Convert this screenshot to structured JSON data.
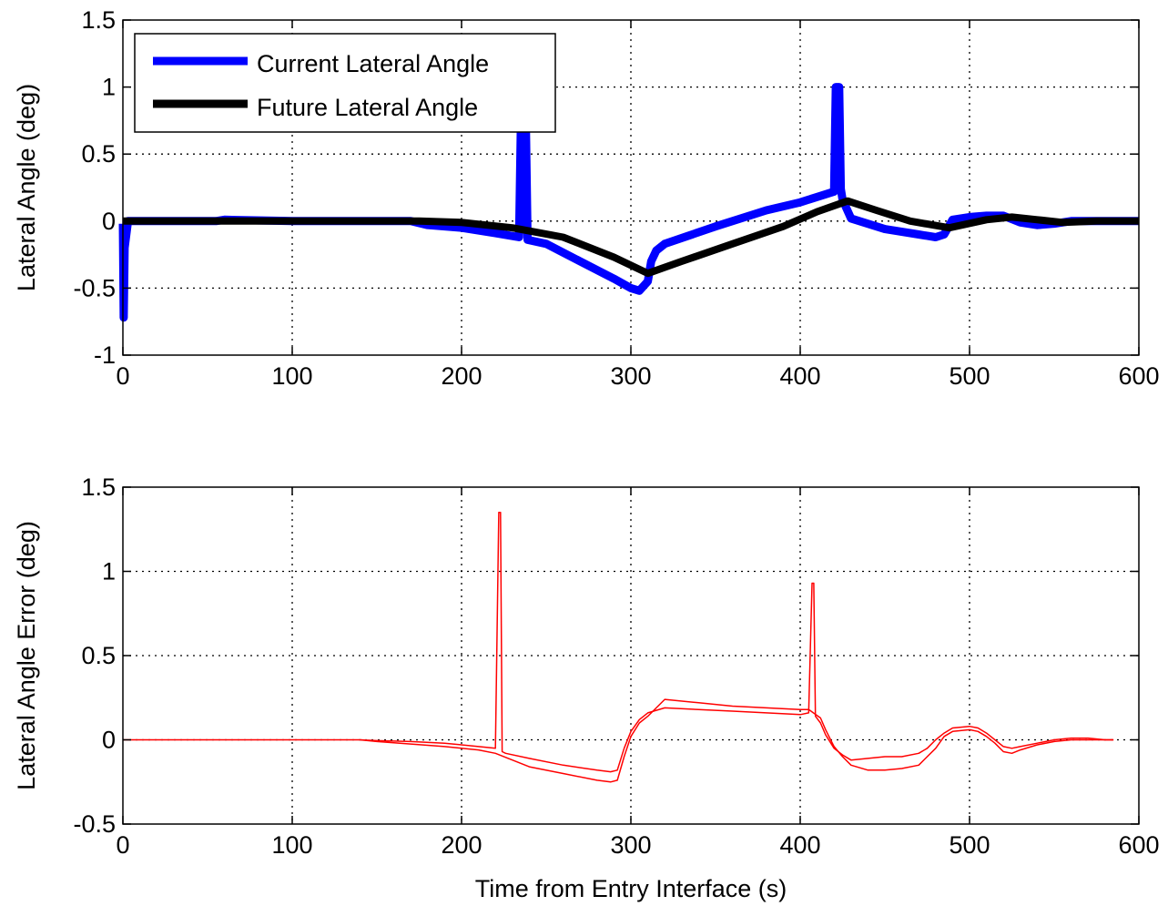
{
  "chart_data": [
    {
      "type": "line",
      "xlabel": "",
      "ylabel": "Lateral Angle (deg)",
      "xlim": [
        0,
        600
      ],
      "ylim": [
        -1,
        1.5
      ],
      "xticks": [
        0,
        100,
        200,
        300,
        400,
        500,
        600
      ],
      "xtick_labels": [
        "0",
        "100",
        "200",
        "300",
        "400",
        "500",
        "600"
      ],
      "yticks": [
        -1,
        -0.5,
        0,
        0.5,
        1,
        1.5
      ],
      "ytick_labels": [
        "-1",
        "-0.5",
        "0",
        "0.5",
        "1",
        "1.5"
      ],
      "grid": true,
      "legend_position": "top-left",
      "series": [
        {
          "name": "Current Lateral Angle",
          "color": "#0000ff",
          "x": [
            0,
            0.5,
            1,
            3,
            55,
            60,
            100,
            170,
            180,
            200,
            220,
            234,
            235,
            236,
            237,
            238,
            239,
            250,
            270,
            290,
            300,
            305,
            310,
            312,
            315,
            320,
            350,
            380,
            400,
            410,
            420,
            421,
            422,
            423,
            424,
            425,
            430,
            450,
            470,
            480,
            485,
            490,
            500,
            510,
            520,
            530,
            540,
            550,
            560,
            580,
            600
          ],
          "y": [
            -0.02,
            -0.72,
            -0.2,
            0.0,
            0.0,
            0.01,
            0.0,
            0.0,
            -0.03,
            -0.05,
            -0.09,
            -0.12,
            0.7,
            0.7,
            0.7,
            0.7,
            -0.14,
            -0.17,
            -0.3,
            -0.43,
            -0.5,
            -0.52,
            -0.45,
            -0.3,
            -0.22,
            -0.17,
            -0.04,
            0.08,
            0.14,
            0.18,
            0.22,
            1.0,
            1.0,
            1.0,
            0.24,
            0.16,
            0.02,
            -0.06,
            -0.1,
            -0.12,
            -0.1,
            0.01,
            0.03,
            0.04,
            0.04,
            -0.01,
            -0.03,
            -0.02,
            0.0,
            0.0,
            0.0
          ]
        },
        {
          "name": "Future Lateral Angle",
          "color": "#000000",
          "x": [
            0,
            100,
            175,
            200,
            230,
            260,
            290,
            310,
            330,
            360,
            390,
            410,
            428,
            445,
            465,
            488,
            510,
            525,
            540,
            555,
            575,
            600
          ],
          "y": [
            0.0,
            0.0,
            0.0,
            -0.01,
            -0.05,
            -0.12,
            -0.27,
            -0.39,
            -0.3,
            -0.17,
            -0.04,
            0.07,
            0.15,
            0.08,
            0.0,
            -0.05,
            0.01,
            0.03,
            0.01,
            -0.01,
            0.0,
            0.0
          ]
        }
      ]
    },
    {
      "type": "line",
      "xlabel": "Time from Entry Interface (s)",
      "ylabel": "Lateral Angle Error (deg)",
      "xlim": [
        0,
        600
      ],
      "ylim": [
        -0.5,
        1.5
      ],
      "xticks": [
        0,
        100,
        200,
        300,
        400,
        500,
        600
      ],
      "xtick_labels": [
        "0",
        "100",
        "200",
        "300",
        "400",
        "500",
        "600"
      ],
      "yticks": [
        -0.5,
        0,
        0.5,
        1,
        1.5
      ],
      "ytick_labels": [
        "-0.5",
        "0",
        "0.5",
        "1",
        "1.5"
      ],
      "grid": true,
      "series": [
        {
          "color": "#ff0000",
          "x": [
            0,
            140,
            150,
            170,
            190,
            200,
            210,
            220,
            222,
            223,
            224,
            226,
            240,
            260,
            280,
            288,
            292,
            296,
            300,
            305,
            310,
            320,
            340,
            360,
            380,
            400,
            405,
            407,
            408,
            409,
            412,
            415,
            420,
            425,
            430,
            440,
            450,
            460,
            470,
            475,
            480,
            485,
            490,
            500,
            505,
            510,
            515,
            520,
            525,
            530,
            540,
            550,
            560,
            570,
            580,
            585
          ],
          "y": [
            0,
            0,
            -0.005,
            -0.01,
            -0.02,
            -0.03,
            -0.04,
            -0.05,
            1.35,
            1.35,
            -0.07,
            -0.08,
            -0.11,
            -0.15,
            -0.18,
            -0.19,
            -0.18,
            -0.05,
            0.05,
            0.12,
            0.16,
            0.19,
            0.18,
            0.17,
            0.16,
            0.15,
            0.16,
            0.93,
            0.93,
            0.14,
            0.1,
            0.03,
            -0.05,
            -0.09,
            -0.12,
            -0.11,
            -0.1,
            -0.1,
            -0.08,
            -0.05,
            0.0,
            0.04,
            0.07,
            0.08,
            0.07,
            0.04,
            0.0,
            -0.04,
            -0.05,
            -0.04,
            -0.02,
            0.0,
            0.01,
            0.01,
            0.0,
            0.0
          ]
        },
        {
          "color": "#ff0000",
          "x": [
            140,
            150,
            170,
            190,
            200,
            210,
            220,
            240,
            260,
            280,
            288,
            292,
            296,
            300,
            305,
            310,
            320,
            340,
            360,
            380,
            400,
            405,
            412,
            415,
            420,
            425,
            430,
            440,
            450,
            460,
            470,
            475,
            480,
            485,
            490,
            500,
            505,
            510,
            515,
            520,
            525,
            530,
            540,
            550,
            560,
            570,
            580,
            585
          ],
          "y": [
            0,
            -0.01,
            -0.025,
            -0.04,
            -0.05,
            -0.06,
            -0.08,
            -0.16,
            -0.2,
            -0.24,
            -0.25,
            -0.24,
            -0.1,
            0.02,
            0.1,
            0.14,
            0.24,
            0.22,
            0.2,
            0.19,
            0.18,
            0.18,
            0.13,
            0.06,
            -0.04,
            -0.1,
            -0.15,
            -0.18,
            -0.18,
            -0.17,
            -0.15,
            -0.1,
            -0.05,
            0.02,
            0.05,
            0.06,
            0.05,
            0.02,
            -0.02,
            -0.07,
            -0.08,
            -0.06,
            -0.03,
            -0.01,
            0.0,
            0.0,
            0.0,
            0.0
          ]
        }
      ]
    }
  ]
}
